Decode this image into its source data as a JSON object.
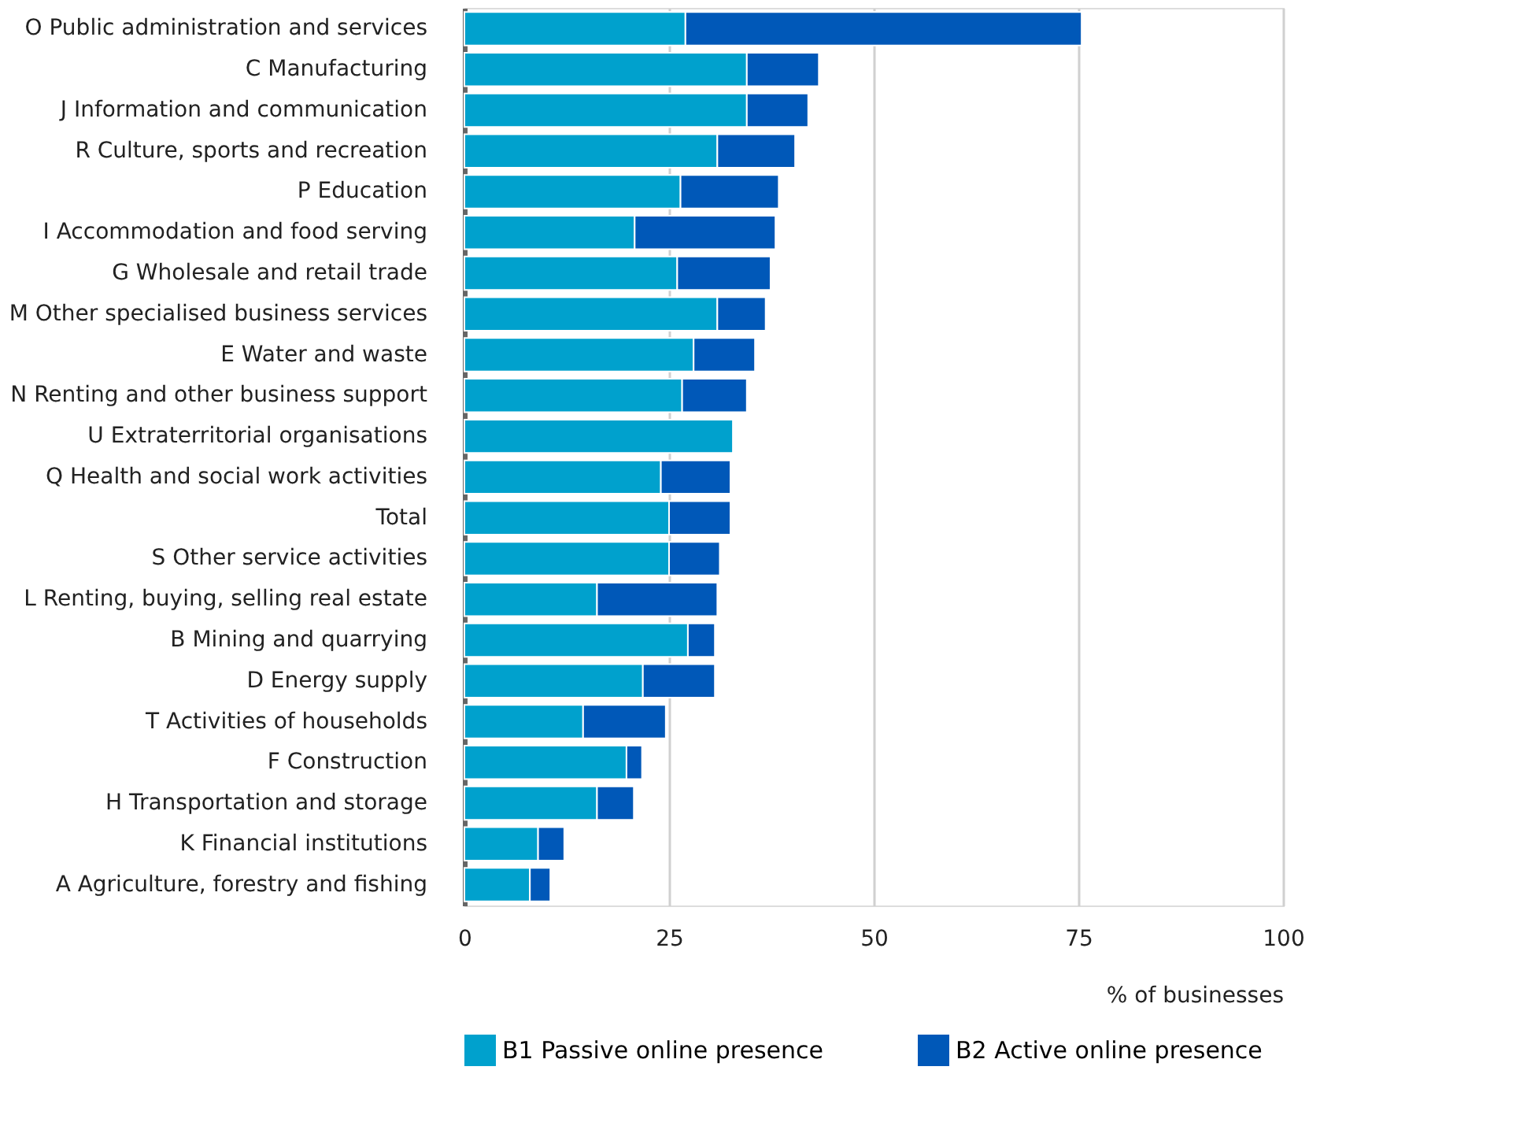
{
  "chart_data": {
    "type": "bar",
    "orientation": "horizontal",
    "stacked": true,
    "categories": [
      "O Public administration and services",
      "C Manufacturing",
      "J Information and communication",
      "R Culture, sports and recreation",
      "P Education",
      "I Accommodation and food serving",
      "G Wholesale and retail trade",
      "M Other specialised business services",
      "E Water and waste",
      "N Renting and other business support",
      "U Extraterritorial organisations",
      "Q Health and social work activities",
      "Total",
      "S Other service activities",
      "L Renting, buying, selling real estate",
      "B Mining and quarrying",
      "D Energy supply",
      "T Activities of households",
      "F Construction",
      "H Transportation and storage",
      "K Financial institutions",
      "A Agriculture, forestry and fishing"
    ],
    "series": [
      {
        "name": "B1 Passive online presence",
        "color": "#00a1cd",
        "values": [
          27.0,
          34.5,
          34.5,
          30.9,
          26.4,
          20.8,
          26.0,
          30.9,
          28.0,
          26.6,
          32.8,
          24.0,
          25.0,
          25.0,
          16.2,
          27.3,
          21.8,
          14.5,
          19.8,
          16.2,
          9.0,
          8.0
        ]
      },
      {
        "name": "B2 Active online presence",
        "color": "#0058b8",
        "values": [
          48.4,
          8.8,
          7.5,
          9.5,
          12.0,
          17.2,
          11.4,
          5.9,
          7.5,
          7.9,
          null,
          8.5,
          7.5,
          6.2,
          14.7,
          3.3,
          8.8,
          10.1,
          1.9,
          4.5,
          3.2,
          2.5
        ]
      }
    ],
    "xlim": [
      0,
      100
    ],
    "xticks": [
      0,
      25,
      50,
      75,
      100
    ],
    "xlabel": "% of businesses",
    "grid": "x",
    "legend": "bottom"
  }
}
